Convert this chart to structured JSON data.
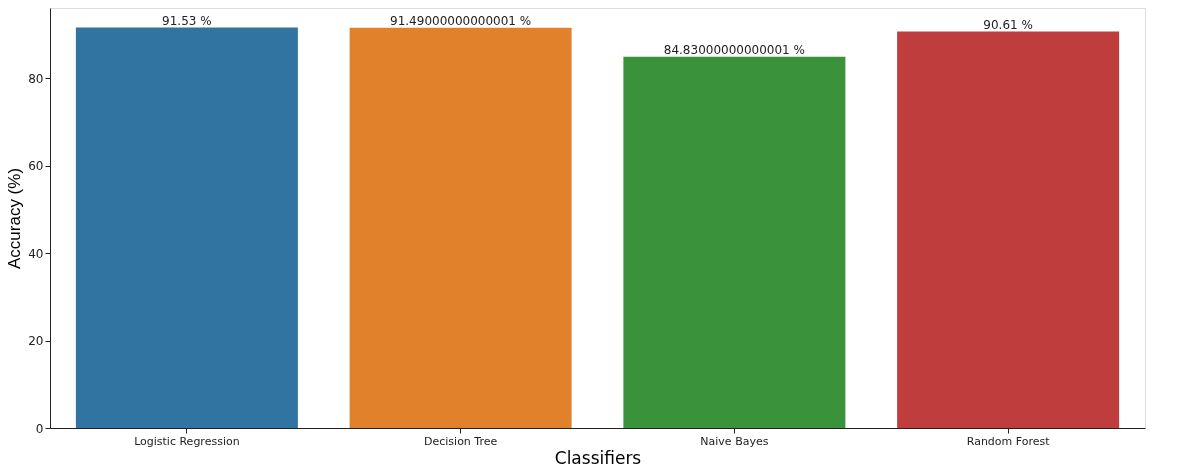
{
  "chart_data": {
    "type": "bar",
    "xlabel": "Classifiers",
    "ylabel": "Accuracy (%)",
    "categories": [
      "Logistic Regression",
      "Decision Tree",
      "Naive Bayes",
      "Random Forest"
    ],
    "values": [
      91.53,
      91.49,
      84.83,
      90.61
    ],
    "value_labels": [
      "91.53 %",
      "91.49000000000001 %",
      "84.83000000000001 %",
      "90.61 %"
    ],
    "colors": [
      "#3274a1",
      "#e1812c",
      "#3a923a",
      "#c03d3e"
    ],
    "ylim": [
      0,
      96
    ],
    "yticks": [
      0,
      20,
      40,
      60,
      80
    ],
    "grid": false,
    "legend": false
  }
}
